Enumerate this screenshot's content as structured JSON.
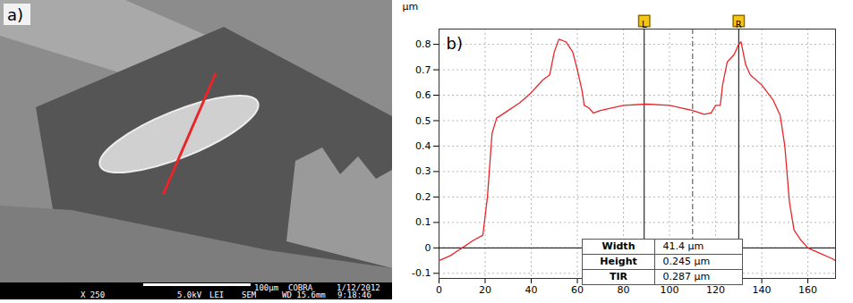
{
  "chart_data": {
    "type": "line",
    "panel_label": "b)",
    "y_label": "µm",
    "x": [
      0,
      5,
      10,
      15,
      19,
      21,
      23,
      25,
      30,
      35,
      40,
      45,
      48,
      50,
      52,
      55,
      58,
      60,
      62,
      63,
      65,
      67,
      70,
      80,
      90,
      100,
      110,
      115,
      118,
      120,
      122,
      123,
      125,
      128,
      130,
      131,
      133,
      135,
      140,
      145,
      148,
      150,
      152,
      154,
      157,
      160,
      165,
      170,
      172
    ],
    "values": [
      -0.05,
      -0.03,
      0.0,
      0.03,
      0.05,
      0.2,
      0.45,
      0.51,
      0.54,
      0.57,
      0.61,
      0.66,
      0.68,
      0.77,
      0.82,
      0.81,
      0.77,
      0.7,
      0.62,
      0.56,
      0.55,
      0.53,
      0.54,
      0.56,
      0.565,
      0.56,
      0.54,
      0.525,
      0.53,
      0.56,
      0.56,
      0.64,
      0.73,
      0.76,
      0.8,
      0.81,
      0.72,
      0.68,
      0.64,
      0.58,
      0.52,
      0.4,
      0.18,
      0.07,
      0.03,
      0.0,
      -0.02,
      -0.04,
      -0.05
    ],
    "color": "#e8262a",
    "xlim": [
      0,
      172
    ],
    "xticks": [
      0,
      20,
      40,
      60,
      80,
      100,
      120,
      140,
      160
    ],
    "ylim": [
      -0.12,
      0.86
    ],
    "yticks": [
      -0.1,
      0,
      0.1,
      0.2,
      0.3,
      0.4,
      0.5,
      0.6,
      0.7,
      0.8
    ],
    "grid": true,
    "cursors": [
      {
        "label": "L",
        "x": 89
      },
      {
        "label": "R",
        "x": 130
      }
    ],
    "midline_x": 110,
    "readout": [
      {
        "label": "Width",
        "value": "41.4 µm"
      },
      {
        "label": "Height",
        "value": "0.245 µm"
      },
      {
        "label": "TIR",
        "value": "0.287 µm"
      }
    ]
  },
  "image_panel": {
    "panel_label": "a)",
    "scale_bar": "100µm",
    "header_row": [
      "COBRA",
      "1/12/2012"
    ],
    "footer_row": [
      "X 250",
      "5.0kV",
      "LEI",
      "SEM",
      "WD 15.6mm",
      "9:18:46"
    ]
  }
}
